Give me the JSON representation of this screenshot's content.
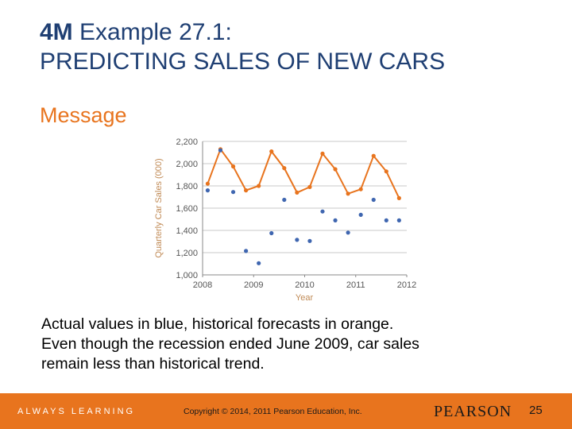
{
  "slide": {
    "title_bold": "4M",
    "title_rest": " Example 27.1:",
    "title_line2": "PREDICTING SALES OF NEW CARS",
    "subhead": "Message",
    "caption_lines": [
      "Actual values in blue, historical forecasts in orange.",
      "Even though the recession ended June 2009, car sales",
      "remain less than historical trend."
    ]
  },
  "footer": {
    "tagline": "ALWAYS LEARNING",
    "copyright": "Copyright © 2014, 2011 Pearson Education, Inc.",
    "brand": "PEARSON",
    "page": "25"
  },
  "colors": {
    "title": "#1f3f73",
    "accent_orange": "#e8741e",
    "actual_blue": "#3f66b0",
    "forecast_orange": "#e8741e"
  },
  "chart_data": {
    "type": "scatter",
    "xlabel": "Year",
    "ylabel": "Quarterly Car Sales (000)",
    "xlim": [
      2008,
      2012
    ],
    "ylim": [
      1000,
      2200
    ],
    "xticks": [
      "2008",
      "2009",
      "2010",
      "2011",
      "2012"
    ],
    "yticks": [
      "1,000",
      "1,200",
      "1,400",
      "1,600",
      "1,800",
      "2,000",
      "2,200"
    ],
    "grid": "horizontal",
    "x": [
      2008.1,
      2008.35,
      2008.6,
      2008.85,
      2009.1,
      2009.35,
      2009.6,
      2009.85,
      2010.1,
      2010.35,
      2010.6,
      2010.85,
      2011.1,
      2011.35,
      2011.6,
      2011.85
    ],
    "series": [
      {
        "values": [
          1760,
          2120,
          1745,
          1215,
          1105,
          1375,
          1675,
          1315,
          1305,
          1570,
          1490,
          1380,
          1540,
          1675,
          1490,
          1490
        ],
        "style": "points"
      },
      {
        "values": [
          1820,
          2130,
          1975,
          1760,
          1800,
          2110,
          1960,
          1740,
          1790,
          2090,
          1950,
          1730,
          1770,
          2070,
          1930,
          1690
        ],
        "style": "line+points"
      }
    ]
  }
}
